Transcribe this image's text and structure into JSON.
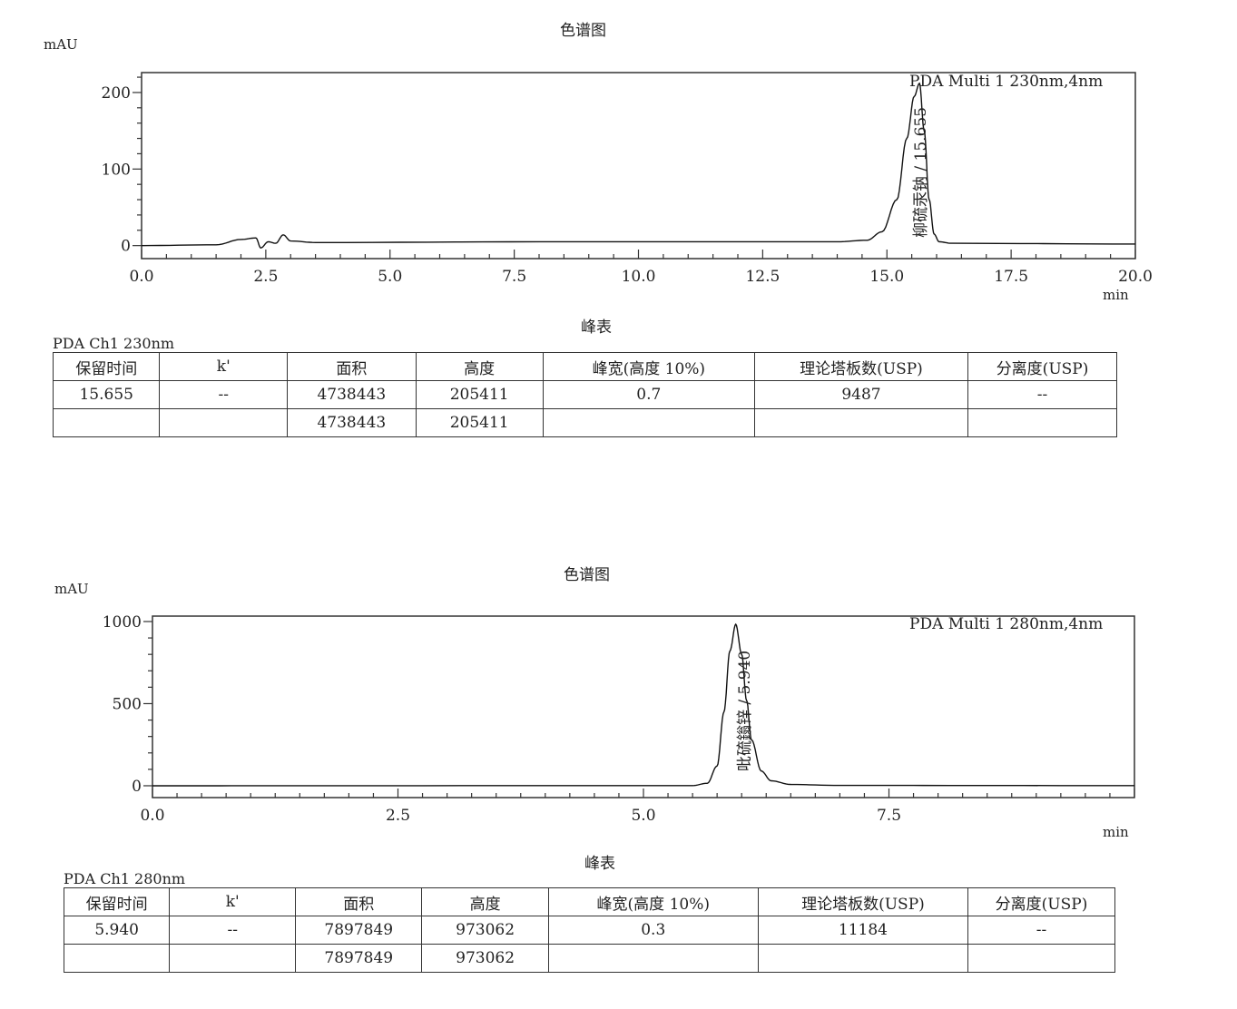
{
  "chart_data": [
    {
      "type": "line",
      "title": "色谱图",
      "ylabel": "mAU",
      "xlabel": "min",
      "legend": "PDA Multi 1 230nm,4nm",
      "xlim": [
        0,
        20
      ],
      "ylim": [
        -17,
        226
      ],
      "xticks": [
        "0.0",
        "2.5",
        "5.0",
        "7.5",
        "10.0",
        "12.5",
        "15.0",
        "17.5",
        "20.0"
      ],
      "yticks": [
        "0",
        "100",
        "200"
      ],
      "peak_label": "柳硫汞钠 / 15.655",
      "x": [
        0,
        1.5,
        2.0,
        2.3,
        2.4,
        2.55,
        2.7,
        2.85,
        3.0,
        3.5,
        8,
        14,
        14.6,
        14.9,
        15.2,
        15.4,
        15.55,
        15.655,
        15.75,
        15.85,
        15.95,
        16.05,
        16.3,
        20
      ],
      "y": [
        0,
        1,
        8,
        10,
        -3,
        5,
        3,
        14,
        6,
        4,
        5,
        5,
        7,
        18,
        60,
        140,
        195,
        212,
        150,
        60,
        15,
        5,
        3,
        2
      ]
    },
    {
      "type": "line",
      "title": "色谱图",
      "ylabel": "mAU",
      "xlabel": "min",
      "legend": "PDA Multi 1 280nm,4nm",
      "xlim": [
        0,
        10
      ],
      "ylim": [
        -72,
        1033
      ],
      "xticks": [
        "0.0",
        "2.5",
        "5.0",
        "7.5",
        ""
      ],
      "yticks": [
        "0",
        "500",
        "1000"
      ],
      "peak_label": "吡硫鎓锌 / 5.940",
      "x": [
        0,
        5.5,
        5.65,
        5.75,
        5.82,
        5.88,
        5.94,
        6.0,
        6.05,
        6.1,
        6.2,
        6.3,
        6.5,
        7,
        10
      ],
      "y": [
        0,
        1,
        15,
        120,
        450,
        820,
        983,
        800,
        520,
        280,
        90,
        30,
        8,
        2,
        1
      ]
    }
  ],
  "tables": [
    {
      "title": "峰表",
      "channel": "PDA Ch1 230nm",
      "headers": [
        "保留时间",
        "k'",
        "面积",
        "高度",
        "峰宽(高度 10%)",
        "理论塔板数(USP)",
        "分离度(USP)"
      ],
      "rows": [
        [
          "15.655",
          "--",
          "4738443",
          "205411",
          "0.7",
          "9487",
          "--"
        ],
        [
          "",
          "",
          "4738443",
          "205411",
          "",
          "",
          ""
        ]
      ]
    },
    {
      "title": "峰表",
      "channel": "PDA Ch1 280nm",
      "headers": [
        "保留时间",
        "k'",
        "面积",
        "高度",
        "峰宽(高度 10%)",
        "理论塔板数(USP)",
        "分离度(USP)"
      ],
      "rows": [
        [
          "5.940",
          "--",
          "7897849",
          "973062",
          "0.3",
          "11184",
          "--"
        ],
        [
          "",
          "",
          "7897849",
          "973062",
          "",
          "",
          ""
        ]
      ]
    }
  ]
}
